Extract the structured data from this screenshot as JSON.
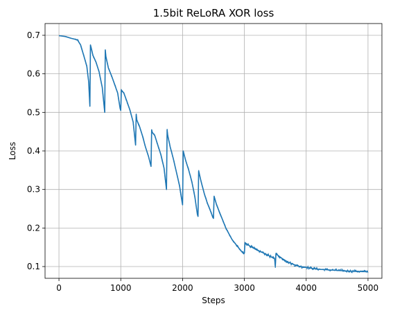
{
  "chart_data": {
    "type": "line",
    "title": "1.5bit ReLoRA XOR loss",
    "xlabel": "Steps",
    "ylabel": "Loss",
    "xlim": [
      -225,
      5225
    ],
    "ylim": [
      0.0695,
      0.7305
    ],
    "xticks": [
      0,
      1000,
      2000,
      3000,
      4000,
      5000
    ],
    "yticks": [
      0.1,
      0.2,
      0.3,
      0.4,
      0.5,
      0.6,
      0.7
    ],
    "grid": true,
    "legend": "none",
    "series": [
      {
        "color": "#1f77b4",
        "x": [
          0,
          100,
          200,
          250,
          300,
          350,
          400,
          450,
          480,
          500,
          510,
          550,
          600,
          650,
          700,
          740,
          750,
          760,
          800,
          850,
          900,
          950,
          990,
          1000,
          1010,
          1050,
          1100,
          1150,
          1200,
          1240,
          1250,
          1260,
          1300,
          1350,
          1400,
          1450,
          1490,
          1500,
          1510,
          1550,
          1600,
          1650,
          1700,
          1740,
          1750,
          1760,
          1800,
          1850,
          1900,
          1950,
          1990,
          2000,
          2010,
          2050,
          2100,
          2150,
          2200,
          2240,
          2250,
          2260,
          2300,
          2350,
          2400,
          2450,
          2490,
          2500,
          2510,
          2550,
          2600,
          2650,
          2700,
          2750,
          2800,
          2850,
          2900,
          2950,
          2990,
          3000,
          3010,
          3100,
          3200,
          3300,
          3400,
          3490,
          3500,
          3510,
          3600,
          3700,
          3800,
          3900,
          4000,
          4100,
          4200,
          4300,
          4400,
          4500,
          4600,
          4700,
          4800,
          4900,
          5000
        ],
        "y": [
          0.699,
          0.697,
          0.692,
          0.69,
          0.688,
          0.675,
          0.648,
          0.62,
          0.58,
          0.516,
          0.675,
          0.648,
          0.63,
          0.605,
          0.565,
          0.5,
          0.662,
          0.645,
          0.615,
          0.595,
          0.573,
          0.55,
          0.51,
          0.505,
          0.558,
          0.55,
          0.528,
          0.505,
          0.475,
          0.415,
          0.495,
          0.48,
          0.465,
          0.44,
          0.41,
          0.385,
          0.36,
          0.455,
          0.448,
          0.44,
          0.415,
          0.39,
          0.355,
          0.3,
          0.455,
          0.44,
          0.41,
          0.38,
          0.345,
          0.31,
          0.27,
          0.26,
          0.4,
          0.375,
          0.35,
          0.32,
          0.28,
          0.235,
          0.23,
          0.348,
          0.32,
          0.29,
          0.265,
          0.245,
          0.228,
          0.225,
          0.282,
          0.26,
          0.24,
          0.22,
          0.2,
          0.185,
          0.17,
          0.16,
          0.15,
          0.14,
          0.133,
          0.135,
          0.162,
          0.152,
          0.143,
          0.136,
          0.128,
          0.12,
          0.1,
          0.133,
          0.122,
          0.112,
          0.105,
          0.1,
          0.098,
          0.095,
          0.093,
          0.092,
          0.091,
          0.09,
          0.089,
          0.088,
          0.088,
          0.087,
          0.087
        ]
      }
    ]
  }
}
